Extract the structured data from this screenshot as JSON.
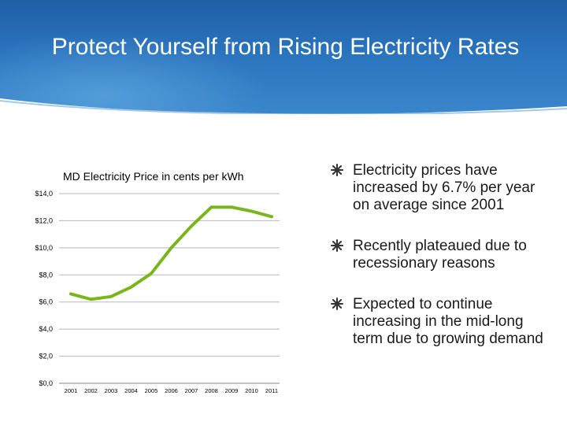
{
  "slide": {
    "title": "Protect Yourself from Rising Electricity Rates"
  },
  "bullets": [
    "Electricity prices have increased by 6.7% per year on average since 2001",
    "Recently plateaued due to recessionary reasons",
    "Expected to continue increasing in the mid-long term due to growing demand"
  ],
  "colors": {
    "header": "#2a73bd",
    "series": "#7ab51d",
    "axis": "#888888"
  },
  "chart_data": {
    "type": "line",
    "title": "MD Electricity Price in cents per kWh",
    "x": [
      "2001",
      "2002",
      "2003",
      "2004",
      "2005",
      "2006",
      "2007",
      "2008",
      "2009",
      "2010",
      "2011"
    ],
    "series": [
      {
        "values": [
          6.6,
          6.2,
          6.4,
          7.1,
          8.1,
          10.0,
          11.6,
          13.0,
          13.0,
          12.7,
          12.3
        ]
      }
    ],
    "yticks": [
      "$0,0",
      "$2,0",
      "$4,0",
      "$6,0",
      "$8,0",
      "$10,0",
      "$12,0",
      "$14,0"
    ],
    "ylim": [
      0,
      14
    ],
    "grid": true,
    "legend": "none"
  }
}
